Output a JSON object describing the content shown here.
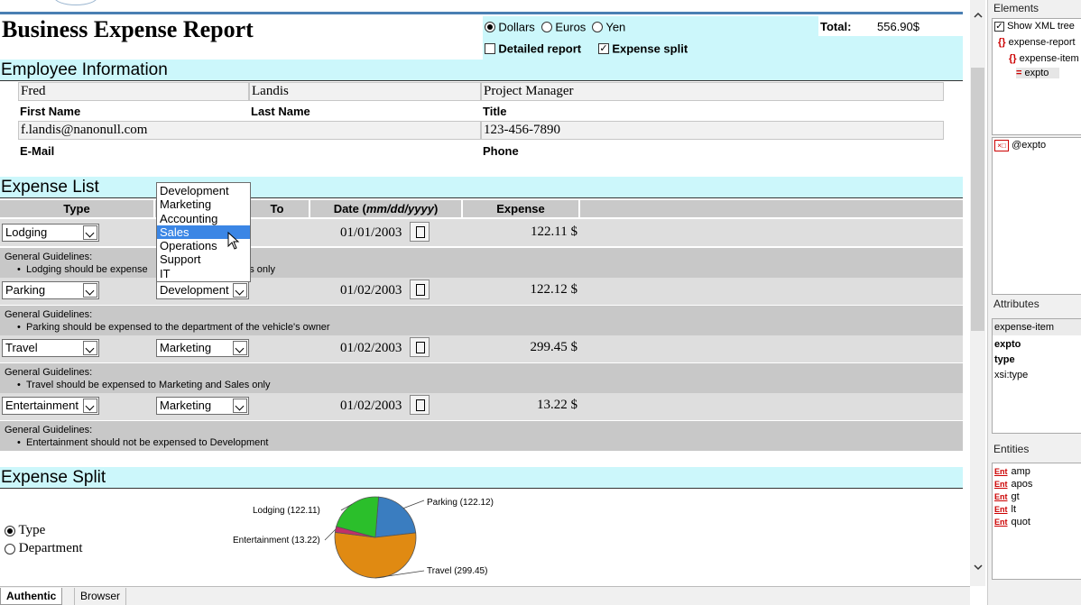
{
  "report": {
    "title": "Business Expense Report",
    "currency_options": [
      "Dollars",
      "Euros",
      "Yen"
    ],
    "currency_selected": "Dollars",
    "total_label": "Total:",
    "total_value": "556.90$",
    "detailed_report_label": "Detailed report",
    "detailed_report_checked": false,
    "expense_split_label": "Expense split",
    "expense_split_checked": true
  },
  "employee": {
    "section_title": "Employee Information",
    "first_name": "Fred",
    "last_name": "Landis",
    "title": "Project Manager",
    "first_name_label": "First Name",
    "last_name_label": "Last Name",
    "title_label": "Title",
    "email": "f.landis@nanonull.com",
    "phone": "123-456-7890",
    "email_label": "E-Mail",
    "phone_label": "Phone"
  },
  "expenses": {
    "section_title": "Expense List",
    "headers": {
      "type": "Type",
      "to": "To",
      "date_prefix": "Date (",
      "date_format": "mm/dd/yyyy",
      "date_suffix": ")",
      "expense": "Expense"
    },
    "guideline_title": "General Guidelines:",
    "items": [
      {
        "type": "Lodging",
        "to": "Sales",
        "date": "01/01/2003",
        "amount": "122.11 $",
        "guideline": "Lodging should be expensed to Marketing and Sales only"
      },
      {
        "type": "Parking",
        "to": "Development",
        "date": "01/02/2003",
        "amount": "122.12 $",
        "guideline": "Parking should be expensed to the department of the vehicle's owner"
      },
      {
        "type": "Travel",
        "to": "Marketing",
        "date": "01/02/2003",
        "amount": "299.45 $",
        "guideline": "Travel should be expensed to Marketing and Sales only"
      },
      {
        "type": "Entertainment",
        "to": "Marketing",
        "date": "01/02/2003",
        "amount": "13.22 $",
        "guideline": "Entertainment should not be expensed to Development"
      }
    ],
    "department_dropdown": {
      "options": [
        "Development",
        "Marketing",
        "Accounting",
        "Sales",
        "Operations",
        "Support",
        "IT"
      ],
      "highlighted": "Sales"
    },
    "lodging_guideline_visible": {
      "before": "Lodging should be expense",
      "after": "ales only"
    }
  },
  "split": {
    "section_title": "Expense Split",
    "options": [
      "Type",
      "Department"
    ],
    "selected": "Type"
  },
  "chart_data": {
    "type": "pie",
    "slices": [
      {
        "label": "Parking (122.12)",
        "value": 122.12,
        "color": "#3a7dc0"
      },
      {
        "label": "Travel (299.45)",
        "value": 299.45,
        "color": "#e08a12"
      },
      {
        "label": "Entertainment (13.22)",
        "value": 13.22,
        "color": "#c0306a"
      },
      {
        "label": "Lodging (122.11)",
        "value": 122.11,
        "color": "#2bbf2b"
      }
    ]
  },
  "tabs": {
    "authentic": "Authentic",
    "browser": "Browser",
    "active": "Authentic"
  },
  "sidebar": {
    "elements_title": "Elements",
    "show_xml_tree_label": "Show XML tree",
    "show_xml_tree_checked": true,
    "tree": [
      "expense-report",
      "expense-item",
      "expto"
    ],
    "element_field": "@expto",
    "attributes_title": "Attributes",
    "attributes_header": "expense-item",
    "attributes": [
      "expto",
      "type",
      "xsi:type"
    ],
    "entities_title": "Entities",
    "entity_icon": "Ent",
    "entities": [
      "amp",
      "apos",
      "gt",
      "lt",
      "quot"
    ]
  }
}
